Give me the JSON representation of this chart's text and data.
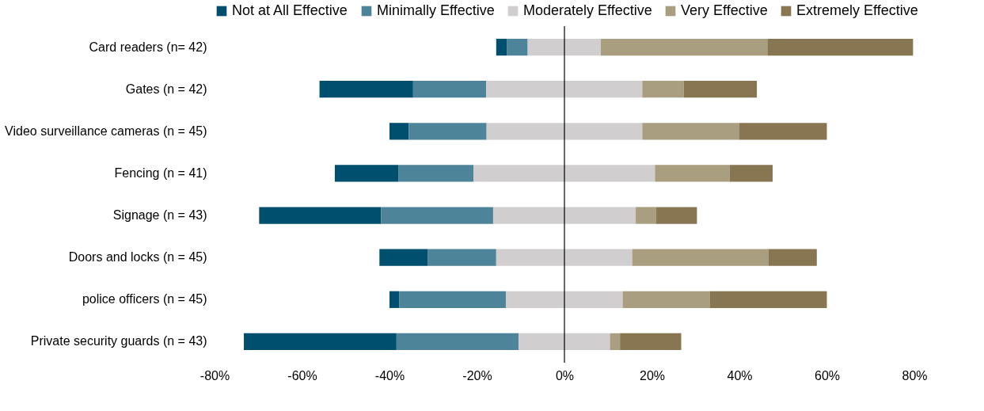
{
  "chart_data": {
    "type": "bar",
    "orientation": "horizontal",
    "categories": [
      "Card readers (n= 42)",
      "Gates (n = 42)",
      "Video surveillance cameras (n = 45)",
      "Fencing (n = 41)",
      "Signage (n = 43)",
      "Doors and locks (n = 45)",
      "police officers (n = 45)",
      "Private security guards (n = 43)"
    ],
    "series": [
      {
        "name": "Not at All Effective",
        "color": "#004f6e",
        "values": [
          2.4,
          21.4,
          4.4,
          14.6,
          27.9,
          11.1,
          2.2,
          34.9
        ],
        "base": [
          -15.6,
          -56.0,
          -40.0,
          -52.5,
          -69.8,
          -42.3,
          -40.0,
          -73.3
        ]
      },
      {
        "name": "Minimally Effective",
        "color": "#4e8499",
        "values": [
          4.8,
          16.7,
          17.8,
          17.1,
          25.6,
          15.6,
          24.4,
          27.9
        ],
        "base": [
          -13.2,
          -34.6,
          -35.6,
          -37.9,
          -41.9,
          -31.2,
          -37.8,
          -38.4
        ]
      },
      {
        "name": "Moderately Effective",
        "color": "#d0cecf",
        "values": [
          16.7,
          35.7,
          35.6,
          41.5,
          32.6,
          31.1,
          26.7,
          20.9
        ],
        "base": [
          -8.4,
          -17.9,
          -17.8,
          -20.8,
          -16.3,
          -15.6,
          -13.4,
          -10.5
        ]
      },
      {
        "name": "Very Effective",
        "color": "#a99e7f",
        "values": [
          38.1,
          9.5,
          22.2,
          17.1,
          4.7,
          31.1,
          20.0,
          2.3
        ],
        "base": [
          8.3,
          17.8,
          17.8,
          20.7,
          16.3,
          15.5,
          13.3,
          10.4
        ]
      },
      {
        "name": "Extremely Effective",
        "color": "#877651",
        "values": [
          33.3,
          16.7,
          20.0,
          9.8,
          9.3,
          11.1,
          26.7,
          14.0
        ],
        "base": [
          46.4,
          27.3,
          40.0,
          37.8,
          21.0,
          46.6,
          33.3,
          12.7
        ]
      }
    ],
    "xlim": [
      -80,
      80
    ],
    "xticks": [
      {
        "value": -80,
        "label": "-80%"
      },
      {
        "value": -60,
        "label": "-60%"
      },
      {
        "value": -40,
        "label": "-40%"
      },
      {
        "value": -20,
        "label": "-20%"
      },
      {
        "value": 0,
        "label": "0%"
      },
      {
        "value": 20,
        "label": "20%"
      },
      {
        "value": 40,
        "label": "40%"
      },
      {
        "value": 60,
        "label": "60%"
      },
      {
        "value": 80,
        "label": "80%"
      }
    ],
    "ref_lines": [
      {
        "axis": "x",
        "value": 0,
        "color": "#000000"
      }
    ],
    "grid": false,
    "legend": "top"
  }
}
